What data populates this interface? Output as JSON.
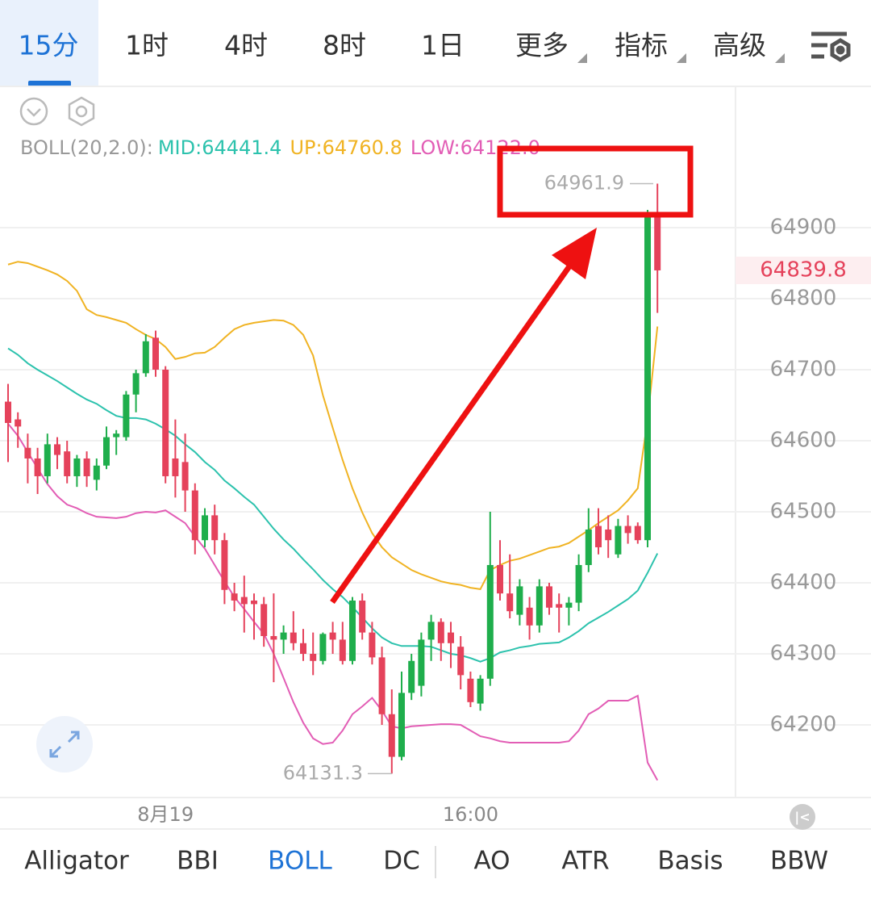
{
  "tabs": [
    "15分",
    "1时",
    "4时",
    "8时",
    "1日",
    "更多",
    "指标",
    "高级"
  ],
  "indicator_tabs": [
    "Alligator",
    "BBI",
    "BOLL",
    "DC",
    "AO",
    "ATR",
    "Basis",
    "BBW"
  ],
  "chart_data": {
    "type": "candlestick",
    "indicator": "BOLL(20,2.0):",
    "categories": [
      null,
      null,
      null,
      null,
      null,
      null,
      null,
      null,
      null,
      null,
      null,
      null,
      null,
      null,
      null,
      null,
      "8月19",
      null,
      null,
      null,
      null,
      null,
      null,
      null,
      null,
      null,
      null,
      null,
      null,
      null,
      null,
      null,
      null,
      null,
      null,
      null,
      null,
      null,
      null,
      null,
      null,
      null,
      null,
      null,
      null,
      null,
      null,
      "16:00",
      null,
      null,
      null,
      null,
      null,
      null,
      null,
      null,
      null,
      null,
      null,
      null,
      null,
      null,
      null,
      null,
      null,
      null,
      null
    ],
    "open": [
      64655,
      64630,
      64590,
      64575,
      64550,
      64595,
      64585,
      64550,
      64575,
      64545,
      64565,
      64605,
      64605,
      64665,
      64695,
      64745,
      64700,
      64575,
      64570,
      64530,
      64460,
      64495,
      64460,
      64385,
      64380,
      64375,
      64370,
      64325,
      64320,
      64330,
      64315,
      64300,
      64290,
      64330,
      64320,
      64290,
      64375,
      64330,
      64295,
      64215,
      64155,
      64245,
      64255,
      64320,
      64345,
      64330,
      64310,
      64265,
      64230,
      64265,
      64425,
      64385,
      64355,
      64365,
      64340,
      64395,
      64370,
      64365,
      64372,
      64425,
      64480,
      64475,
      64440,
      64480,
      64480,
      64460,
      64920
    ],
    "high": [
      64680,
      64640,
      64610,
      64590,
      64610,
      64605,
      64600,
      64580,
      64585,
      64575,
      64620,
      64615,
      64670,
      64700,
      64750,
      64755,
      64705,
      64630,
      64610,
      64540,
      64505,
      64510,
      64470,
      64400,
      64410,
      64385,
      64380,
      64385,
      64340,
      64360,
      64335,
      64330,
      64330,
      64345,
      64345,
      64380,
      64385,
      64345,
      64310,
      64250,
      64275,
      64300,
      64330,
      64355,
      64350,
      64345,
      64325,
      64275,
      64270,
      64500,
      64460,
      64440,
      64405,
      64380,
      64405,
      64400,
      64385,
      64380,
      64440,
      64505,
      64505,
      64495,
      64490,
      64495,
      64485,
      64925,
      64961.9
    ],
    "low": [
      64570,
      64590,
      64540,
      64525,
      64540,
      64560,
      64540,
      64535,
      64535,
      64530,
      64560,
      64580,
      64600,
      64640,
      64690,
      64690,
      64540,
      64520,
      64500,
      64440,
      64450,
      64440,
      64370,
      64360,
      64330,
      64320,
      64310,
      64260,
      64300,
      64305,
      64290,
      64270,
      64285,
      64300,
      64285,
      64285,
      64320,
      64285,
      64200,
      64131.3,
      64150,
      64235,
      64240,
      64290,
      64290,
      64280,
      64250,
      64225,
      64220,
      64255,
      64375,
      64350,
      64340,
      64320,
      64330,
      64355,
      64330,
      64340,
      64360,
      64415,
      64440,
      64435,
      64435,
      64455,
      64455,
      64450,
      64780
    ],
    "close": [
      64625,
      64620,
      64575,
      64550,
      64595,
      64580,
      64550,
      64575,
      64550,
      64565,
      64605,
      64610,
      64665,
      64695,
      64740,
      64700,
      64550,
      64550,
      64530,
      64460,
      64495,
      64460,
      64390,
      64375,
      64370,
      64370,
      64325,
      64320,
      64330,
      64315,
      64300,
      64290,
      64328,
      64320,
      64290,
      64375,
      64330,
      64295,
      64215,
      64155,
      64245,
      64290,
      64320,
      64345,
      64315,
      64315,
      64270,
      64232,
      64265,
      64425,
      64385,
      64360,
      64395,
      64340,
      64395,
      64365,
      64365,
      64372,
      64425,
      64475,
      64450,
      64460,
      64480,
      64470,
      64460,
      64920,
      64839.8
    ],
    "up_color": "#1fae4c",
    "down_color": "#e5425b",
    "series": [
      {
        "name": "MID:",
        "color": "#2cc2ad",
        "values": [
          64730,
          64721,
          64709,
          64700,
          64692,
          64684,
          64675,
          64666,
          64658,
          64652,
          64643,
          64635,
          64632,
          64632,
          64630,
          64624,
          64616,
          64607,
          64595,
          64584,
          64570,
          64559,
          64544,
          64533,
          64521,
          64510,
          64493,
          64476,
          64461,
          64448,
          64433,
          64419,
          64404,
          64391,
          64380,
          64366,
          64351,
          64336,
          64323,
          64315,
          64311,
          64311,
          64311,
          64310,
          64305,
          64300,
          64298,
          64294,
          64289,
          64294,
          64302,
          64305,
          64309,
          64311,
          64314,
          64315,
          64316,
          64323,
          64332,
          64343,
          64351,
          64359,
          64368,
          64377,
          64389,
          64414,
          64441.4
        ]
      },
      {
        "name": "UP:",
        "color": "#f0b323",
        "values": [
          64848,
          64852,
          64850,
          64845,
          64840,
          64834,
          64825,
          64811,
          64785,
          64777,
          64774,
          64770,
          64766,
          64757,
          64749,
          64743,
          64732,
          64715,
          64718,
          64723,
          64724,
          64732,
          64745,
          64757,
          64763,
          64766,
          64768,
          64770,
          64769,
          64763,
          64749,
          64720,
          64664,
          64618,
          64573,
          64533,
          64499,
          64470,
          64450,
          64436,
          64427,
          64418,
          64412,
          64407,
          64402,
          64399,
          64397,
          64393,
          64391,
          64418,
          64425,
          64431,
          64434,
          64439,
          64444,
          64449,
          64451,
          64456,
          64465,
          64474,
          64484,
          64493,
          64502,
          64516,
          64533,
          64630,
          64760.8
        ]
      },
      {
        "name": "LOW:",
        "color": "#e25db5",
        "values": [
          64624,
          64607,
          64584,
          64561,
          64539,
          64522,
          64510,
          64505,
          64498,
          64493,
          64492,
          64491,
          64493,
          64498,
          64500,
          64499,
          64502,
          64493,
          64484,
          64465,
          64448,
          64425,
          64402,
          64380,
          64363,
          64345,
          64328,
          64300,
          64266,
          64232,
          64203,
          64181,
          64173,
          64175,
          64192,
          64215,
          64226,
          64238,
          64220,
          64198,
          64195,
          64198,
          64199,
          64200,
          64201,
          64201,
          64200,
          64192,
          64184,
          64181,
          64177,
          64175,
          64175,
          64175,
          64175,
          64175,
          64175,
          64177,
          64192,
          64215,
          64223,
          64234,
          64234,
          64234,
          64241,
          64147,
          64122.0
        ],
        "value_labels": [
          null,
          null,
          null,
          null,
          null,
          null,
          null,
          null,
          null,
          null,
          null,
          null,
          null,
          null,
          null,
          null,
          null,
          null,
          null,
          null,
          null,
          null,
          null,
          null,
          null,
          null,
          null,
          null,
          null,
          null,
          null,
          null,
          null,
          null,
          null,
          null,
          null,
          null,
          null,
          null,
          null,
          null,
          null,
          null,
          null,
          null,
          null,
          null,
          null,
          null,
          null,
          null,
          null,
          null,
          null,
          null,
          null,
          null,
          null,
          null,
          null,
          null,
          null,
          null,
          null,
          null,
          "64122.0"
        ]
      }
    ],
    "ylim": [
      64097.7,
      65097.7
    ],
    "yticks": [
      64200,
      64300,
      64400,
      64500,
      64600,
      64700,
      64800,
      64900
    ],
    "grid": true
  }
}
